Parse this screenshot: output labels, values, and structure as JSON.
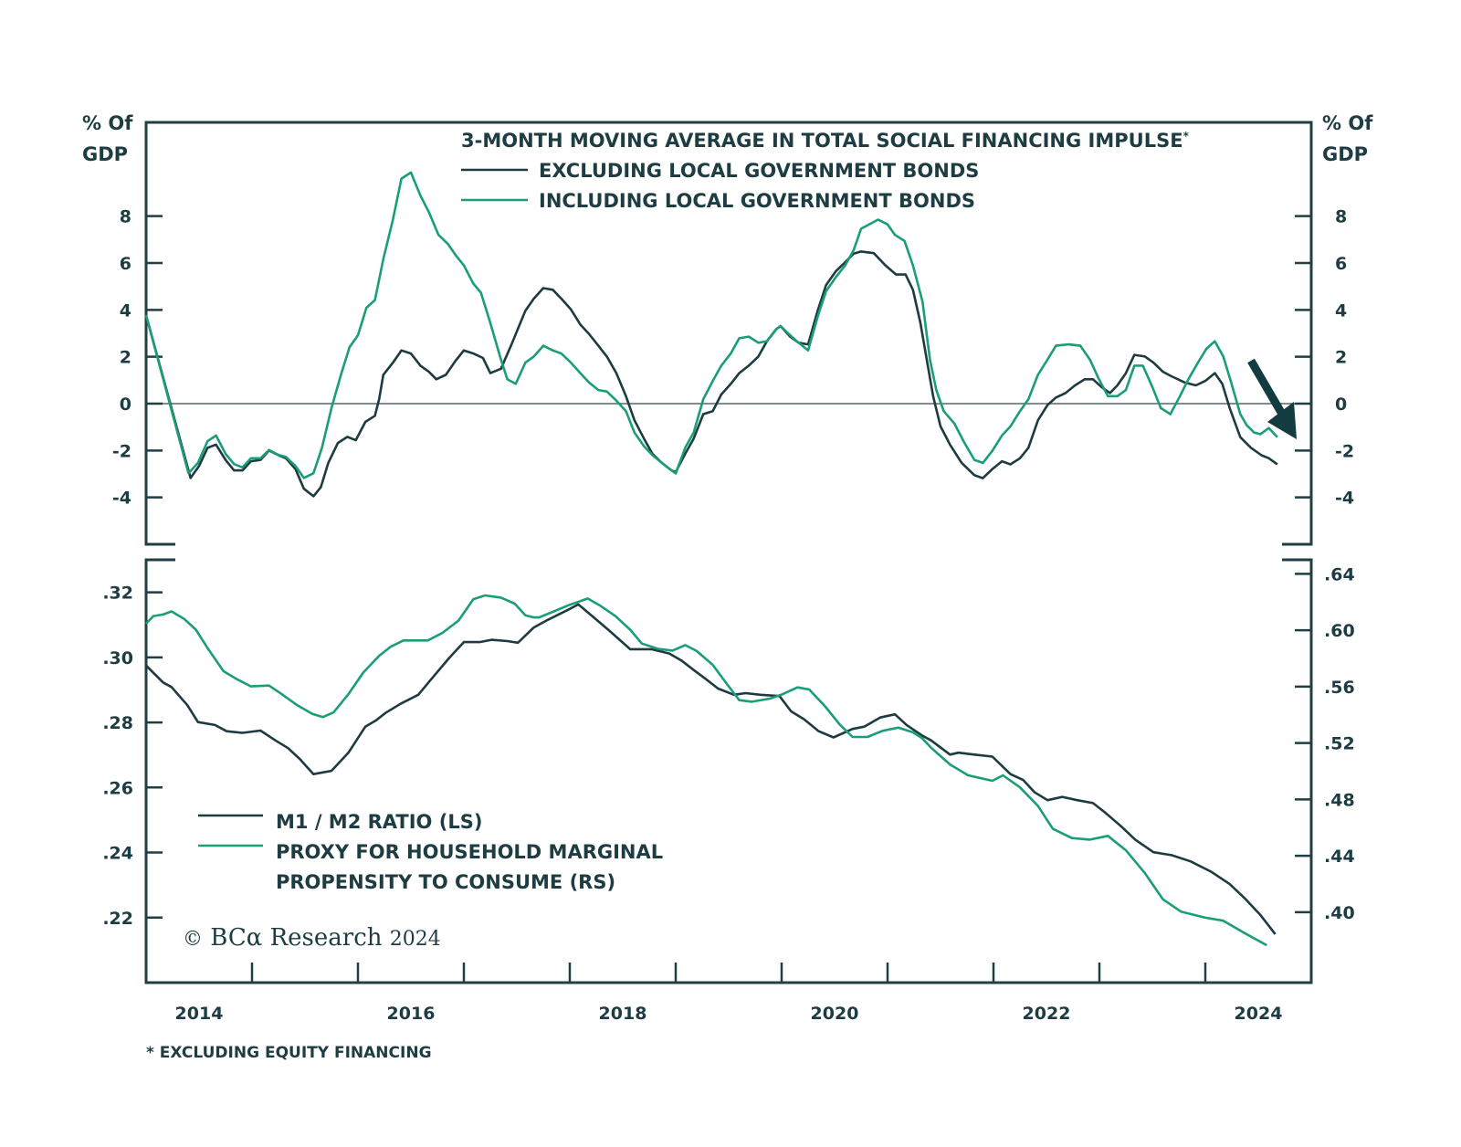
{
  "chart_data": [
    {
      "type": "line",
      "panel": "top",
      "title": "3-MONTH MOVING AVERAGE IN TOTAL SOCIAL FINANCING IMPULSE*",
      "ylabel_left": [
        "% Of",
        "GDP"
      ],
      "ylabel_right": [
        "% Of",
        "GDP"
      ],
      "ylim": [
        -6,
        12
      ],
      "yticks": [
        8,
        6,
        4,
        2,
        0,
        -2,
        -4
      ],
      "ytick_labels": [
        "8",
        "6",
        "4",
        "2",
        "0",
        "-2",
        "-4"
      ],
      "zero_line": true,
      "annotation": "downward arrow at end of series",
      "series": [
        {
          "name": "EXCLUDING LOCAL GOVERNMENT BONDS",
          "color": "#1d3b40",
          "x": [
            2014.0,
            2014.42,
            2014.5,
            2014.58,
            2014.66,
            2014.75,
            2014.83,
            2014.91,
            2014.99,
            2015.08,
            2015.16,
            2015.25,
            2015.32,
            2015.41,
            2015.49,
            2015.58,
            2015.65,
            2015.72,
            2015.81,
            2015.9,
            2015.98,
            2016.07,
            2016.16,
            2016.2,
            2016.24,
            2016.33,
            2016.41,
            2016.5,
            2016.59,
            2016.67,
            2016.74,
            2016.83,
            2016.92,
            2017.0,
            2017.09,
            2017.18,
            2017.25,
            2017.35,
            2017.45,
            2017.58,
            2017.66,
            2017.75,
            2017.84,
            2017.92,
            2018.01,
            2018.1,
            2018.18,
            2018.27,
            2018.35,
            2018.44,
            2018.53,
            2018.61,
            2018.7,
            2018.78,
            2018.87,
            2018.96,
            2019.0,
            2019.09,
            2019.17,
            2019.26,
            2019.35,
            2019.43,
            2019.52,
            2019.6,
            2019.69,
            2019.78,
            2019.86,
            2019.95,
            2019.99,
            2020.08,
            2020.16,
            2020.25,
            2020.34,
            2020.42,
            2020.51,
            2020.6,
            2020.68,
            2020.75,
            2020.87,
            2020.98,
            2021.08,
            2021.17,
            2021.24,
            2021.31,
            2021.37,
            2021.43,
            2021.5,
            2021.59,
            2021.7,
            2021.82,
            2021.9,
            2021.99,
            2022.08,
            2022.16,
            2022.25,
            2022.33,
            2022.42,
            2022.51,
            2022.59,
            2022.68,
            2022.77,
            2022.86,
            2022.94,
            2023.02,
            2023.1,
            2023.17,
            2023.25,
            2023.33,
            2023.43,
            2023.51,
            2023.6,
            2023.68,
            2023.8,
            2023.91,
            2024.0,
            2024.09,
            2024.16,
            2024.23,
            2024.33,
            2024.43,
            2024.53,
            2024.6,
            2024.68
          ],
          "y": [
            3.77,
            -3.17,
            -2.66,
            -1.88,
            -1.75,
            -2.4,
            -2.85,
            -2.85,
            -2.46,
            -2.4,
            -2.0,
            -2.2,
            -2.33,
            -2.79,
            -3.63,
            -3.95,
            -3.56,
            -2.53,
            -1.68,
            -1.42,
            -1.56,
            -0.78,
            -0.52,
            0.19,
            1.23,
            1.75,
            2.27,
            2.14,
            1.62,
            1.36,
            1.04,
            1.23,
            1.82,
            2.27,
            2.14,
            1.95,
            1.3,
            1.49,
            2.53,
            3.96,
            4.48,
            4.93,
            4.86,
            4.48,
            4.02,
            3.37,
            2.98,
            2.47,
            2.01,
            1.3,
            0.32,
            -0.71,
            -1.49,
            -2.14,
            -2.53,
            -2.85,
            -2.92,
            -2.14,
            -1.49,
            -0.45,
            -0.32,
            0.39,
            0.84,
            1.3,
            1.62,
            2.01,
            2.66,
            3.18,
            3.31,
            2.86,
            2.6,
            2.53,
            3.96,
            5.06,
            5.64,
            6.03,
            6.4,
            6.49,
            6.42,
            5.9,
            5.51,
            5.51,
            4.86,
            3.44,
            1.88,
            0.32,
            -0.97,
            -1.75,
            -2.53,
            -3.05,
            -3.18,
            -2.79,
            -2.46,
            -2.59,
            -2.33,
            -1.88,
            -0.71,
            -0.06,
            0.26,
            0.45,
            0.78,
            1.04,
            1.04,
            0.71,
            0.45,
            0.78,
            1.3,
            2.08,
            2.01,
            1.75,
            1.36,
            1.17,
            0.91,
            0.78,
            0.97,
            1.3,
            0.84,
            -0.19,
            -1.43,
            -1.88,
            -2.2,
            -2.33,
            -2.59
          ]
        },
        {
          "name": "INCLUDING LOCAL GOVERNMENT BONDS",
          "color": "#1a9e78",
          "x": [
            2014.0,
            2014.4,
            2014.49,
            2014.58,
            2014.66,
            2014.75,
            2014.83,
            2014.91,
            2014.99,
            2015.08,
            2015.16,
            2015.25,
            2015.32,
            2015.41,
            2015.49,
            2015.58,
            2015.66,
            2015.75,
            2015.84,
            2015.92,
            2016.0,
            2016.08,
            2016.16,
            2016.24,
            2016.33,
            2016.41,
            2016.5,
            2016.59,
            2016.67,
            2016.76,
            2016.85,
            2016.93,
            2017.0,
            2017.09,
            2017.16,
            2017.25,
            2017.35,
            2017.41,
            2017.49,
            2017.58,
            2017.66,
            2017.75,
            2017.84,
            2017.92,
            2018.01,
            2018.1,
            2018.18,
            2018.27,
            2018.35,
            2018.44,
            2018.53,
            2018.61,
            2018.7,
            2018.78,
            2018.87,
            2018.96,
            2019.0,
            2019.09,
            2019.17,
            2019.26,
            2019.35,
            2019.43,
            2019.52,
            2019.6,
            2019.69,
            2019.78,
            2019.86,
            2019.95,
            2019.99,
            2020.08,
            2020.16,
            2020.25,
            2020.34,
            2020.42,
            2020.51,
            2020.6,
            2020.68,
            2020.75,
            2020.91,
            2021.0,
            2021.07,
            2021.16,
            2021.24,
            2021.33,
            2021.4,
            2021.46,
            2021.53,
            2021.63,
            2021.72,
            2021.82,
            2021.9,
            2021.99,
            2022.08,
            2022.16,
            2022.25,
            2022.33,
            2022.42,
            2022.51,
            2022.59,
            2022.71,
            2022.82,
            2022.91,
            2022.99,
            2023.08,
            2023.17,
            2023.25,
            2023.33,
            2023.41,
            2023.5,
            2023.58,
            2023.67,
            2023.76,
            2023.84,
            2023.93,
            2024.01,
            2024.09,
            2024.17,
            2024.24,
            2024.33,
            2024.39,
            2024.46,
            2024.52,
            2024.6,
            2024.68
          ],
          "y": [
            3.77,
            -2.97,
            -2.53,
            -1.6,
            -1.36,
            -2.14,
            -2.58,
            -2.72,
            -2.33,
            -2.33,
            -1.98,
            -2.19,
            -2.27,
            -2.66,
            -3.17,
            -2.97,
            -1.88,
            -0.19,
            1.23,
            2.4,
            2.92,
            4.09,
            4.42,
            6.17,
            7.85,
            9.6,
            9.86,
            8.88,
            8.17,
            7.2,
            6.81,
            6.29,
            5.9,
            5.12,
            4.74,
            3.44,
            1.88,
            1.04,
            0.84,
            1.75,
            2.01,
            2.47,
            2.27,
            2.14,
            1.75,
            1.3,
            0.91,
            0.58,
            0.52,
            0.13,
            -0.32,
            -1.23,
            -1.81,
            -2.2,
            -2.53,
            -2.85,
            -2.98,
            -1.88,
            -1.23,
            0.19,
            0.97,
            1.62,
            2.14,
            2.79,
            2.86,
            2.6,
            2.66,
            3.18,
            3.31,
            2.92,
            2.6,
            2.27,
            3.7,
            4.8,
            5.39,
            5.9,
            6.55,
            7.46,
            7.85,
            7.65,
            7.2,
            6.94,
            5.9,
            4.35,
            1.88,
            0.58,
            -0.32,
            -0.84,
            -1.62,
            -2.4,
            -2.53,
            -2.01,
            -1.36,
            -0.97,
            -0.32,
            0.19,
            1.23,
            1.88,
            2.47,
            2.53,
            2.47,
            1.88,
            1.1,
            0.32,
            0.32,
            0.58,
            1.62,
            1.62,
            0.71,
            -0.19,
            -0.45,
            0.32,
            1.04,
            1.75,
            2.34,
            2.66,
            2.01,
            0.97,
            -0.45,
            -0.91,
            -1.23,
            -1.3,
            -1.04,
            -1.43
          ]
        }
      ]
    },
    {
      "type": "line",
      "panel": "bottom",
      "ylim_left": [
        0.2,
        0.33
      ],
      "ylim_right": [
        0.35,
        0.65
      ],
      "yticks_left": [
        0.32,
        0.3,
        0.28,
        0.26,
        0.24,
        0.22
      ],
      "ytick_labels_left": [
        ".32",
        ".30",
        ".28",
        ".26",
        ".24",
        ".22"
      ],
      "yticks_right": [
        0.64,
        0.6,
        0.56,
        0.52,
        0.48,
        0.44,
        0.4
      ],
      "ytick_labels_right": [
        ".64",
        ".60",
        ".56",
        ".52",
        ".48",
        ".44",
        ".40"
      ],
      "series": [
        {
          "name": "M1 / M2 RATIO (LS)",
          "axis": "left",
          "color": "#1d3b40",
          "x": [
            2014.0,
            2014.16,
            2014.24,
            2014.39,
            2014.49,
            2014.65,
            2014.76,
            2014.91,
            2015.08,
            2015.22,
            2015.34,
            2015.45,
            2015.58,
            2015.75,
            2015.91,
            2016.07,
            2016.17,
            2016.26,
            2016.4,
            2016.57,
            2016.69,
            2016.86,
            2017.0,
            2017.15,
            2017.26,
            2017.41,
            2017.51,
            2017.66,
            2017.79,
            2017.97,
            2018.08,
            2018.2,
            2018.37,
            2018.57,
            2018.77,
            2018.94,
            2019.06,
            2019.17,
            2019.29,
            2019.4,
            2019.55,
            2019.66,
            2019.8,
            2019.98,
            2020.09,
            2020.21,
            2020.35,
            2020.49,
            2020.67,
            2020.78,
            2020.93,
            2021.07,
            2021.18,
            2021.33,
            2021.41,
            2021.59,
            2021.67,
            2021.82,
            2021.99,
            2022.16,
            2022.28,
            2022.39,
            2022.51,
            2022.65,
            2022.79,
            2022.94,
            2023.05,
            2023.2,
            2023.34,
            2023.51,
            2023.68,
            2023.86,
            2024.06,
            2024.23,
            2024.37,
            2024.52,
            2024.66
          ],
          "y": [
            0.2975,
            0.2923,
            0.2909,
            0.2853,
            0.2801,
            0.2792,
            0.2773,
            0.2768,
            0.2775,
            0.2745,
            0.2721,
            0.2688,
            0.2641,
            0.2651,
            0.2707,
            0.2787,
            0.2806,
            0.2829,
            0.2857,
            0.2885,
            0.2932,
            0.2998,
            0.3047,
            0.3047,
            0.3054,
            0.305,
            0.3045,
            0.3092,
            0.3115,
            0.3144,
            0.3163,
            0.313,
            0.3083,
            0.3025,
            0.3025,
            0.3012,
            0.2989,
            0.2961,
            0.2932,
            0.2904,
            0.2885,
            0.289,
            0.2885,
            0.2881,
            0.2834,
            0.281,
            0.2773,
            0.2754,
            0.278,
            0.2787,
            0.2815,
            0.2825,
            0.2792,
            0.2759,
            0.2745,
            0.2701,
            0.2707,
            0.2701,
            0.2695,
            0.2641,
            0.2623,
            0.2585,
            0.2561,
            0.2571,
            0.2561,
            0.2552,
            0.2524,
            0.2482,
            0.2439,
            0.2401,
            0.2392,
            0.2373,
            0.234,
            0.2303,
            0.226,
            0.2208,
            0.2149
          ]
        },
        {
          "name": "PROXY FOR HOUSEHOLD MARGINAL PROPENSITY TO CONSUME (RS)",
          "axis": "right",
          "color": "#1a9e78",
          "x": [
            2014.0,
            2014.07,
            2014.16,
            2014.24,
            2014.36,
            2014.47,
            2014.59,
            2014.73,
            2014.85,
            2014.99,
            2015.16,
            2015.28,
            2015.42,
            2015.57,
            2015.67,
            2015.77,
            2015.91,
            2016.05,
            2016.2,
            2016.31,
            2016.43,
            2016.54,
            2016.66,
            2016.8,
            2016.95,
            2017.09,
            2017.2,
            2017.35,
            2017.48,
            2017.58,
            2017.66,
            2017.71,
            2017.85,
            2017.99,
            2018.17,
            2018.28,
            2018.43,
            2018.57,
            2018.68,
            2018.83,
            2018.97,
            2019.09,
            2019.2,
            2019.35,
            2019.49,
            2019.6,
            2019.72,
            2019.89,
            2020.01,
            2020.15,
            2020.26,
            2020.41,
            2020.55,
            2020.67,
            2020.81,
            2020.95,
            2021.1,
            2021.24,
            2021.33,
            2021.41,
            2021.59,
            2021.76,
            2021.99,
            2022.09,
            2022.25,
            2022.42,
            2022.56,
            2022.74,
            2022.91,
            2023.08,
            2023.25,
            2023.43,
            2023.6,
            2023.77,
            2024.0,
            2024.17,
            2024.37,
            2024.58
          ],
          "y": [
            0.6047,
            0.6101,
            0.6112,
            0.6134,
            0.608,
            0.6004,
            0.5863,
            0.571,
            0.5656,
            0.5602,
            0.5608,
            0.5547,
            0.5472,
            0.5406,
            0.5384,
            0.5417,
            0.5547,
            0.57,
            0.5819,
            0.5884,
            0.5928,
            0.5928,
            0.5928,
            0.5982,
            0.6069,
            0.6221,
            0.6247,
            0.6232,
            0.6189,
            0.6106,
            0.6091,
            0.6091,
            0.6134,
            0.6178,
            0.6225,
            0.6178,
            0.6101,
            0.6004,
            0.5906,
            0.5869,
            0.5856,
            0.5895,
            0.5852,
            0.5754,
            0.5612,
            0.5504,
            0.5493,
            0.5515,
            0.5547,
            0.5595,
            0.558,
            0.546,
            0.533,
            0.5243,
            0.5243,
            0.5286,
            0.5309,
            0.5276,
            0.5232,
            0.5167,
            0.5048,
            0.4971,
            0.4932,
            0.4971,
            0.4885,
            0.4754,
            0.4591,
            0.4526,
            0.4515,
            0.4541,
            0.4439,
            0.4276,
            0.4091,
            0.4004,
            0.3961,
            0.3939,
            0.3852,
            0.3765
          ]
        }
      ]
    }
  ],
  "x_axis": {
    "range": [
      2014,
      2025
    ],
    "labels": [
      "2014",
      "2016",
      "2018",
      "2020",
      "2022",
      "2024"
    ],
    "label_years": [
      2014,
      2016,
      2018,
      2020,
      2022,
      2024
    ]
  },
  "legend_top": {
    "title": "3-MONTH MOVING AVERAGE IN TOTAL SOCIAL FINANCING IMPULSE",
    "title_mark": "*",
    "items": [
      "EXCLUDING LOCAL GOVERNMENT BONDS",
      "INCLUDING LOCAL GOVERNMENT BONDS"
    ]
  },
  "legend_bottom": {
    "items": [
      "M1 / M2 RATIO (LS)",
      "PROXY FOR HOUSEHOLD MARGINAL",
      "PROPENSITY TO CONSUME (RS)"
    ]
  },
  "units": {
    "line1": "% Of",
    "line2": "GDP"
  },
  "copyright": {
    "symbol": "©",
    "brand": "BCα",
    "text": "Research",
    "year": "2024"
  },
  "footnote": "* EXCLUDING EQUITY FINANCING",
  "colors": {
    "dark": "#1d3b40",
    "green": "#1a9e78",
    "axis": "#1f3f44",
    "zero": "#7f8d8e"
  }
}
